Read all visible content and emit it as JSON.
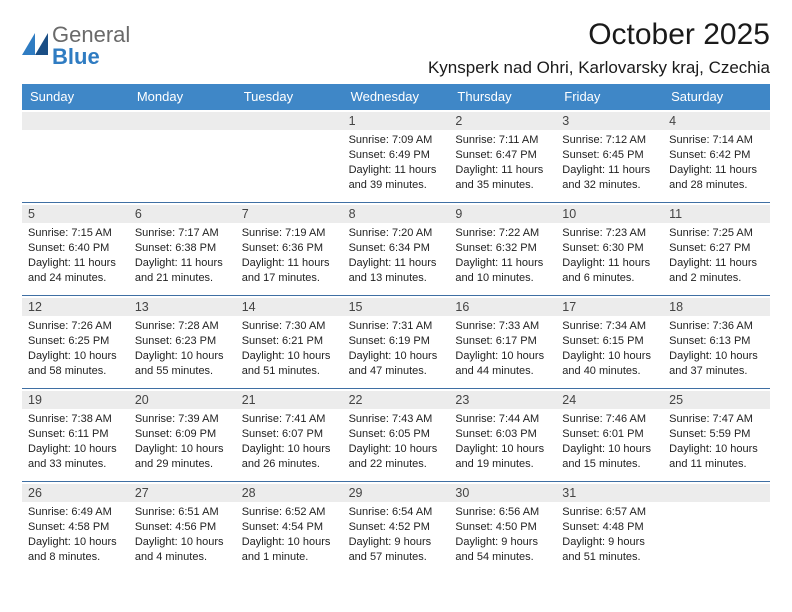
{
  "logo": {
    "text1": "General",
    "text2": "Blue"
  },
  "title": "October 2025",
  "subtitle": "Kynsperk nad Ohri, Karlovarsky kraj, Czechia",
  "colors": {
    "header_bg": "#3f87c7",
    "header_text": "#ffffff",
    "row_divider": "#3f6fa3",
    "daynum_bg": "#ececec",
    "logo_blue": "#2f7cc2"
  },
  "day_headers": [
    "Sunday",
    "Monday",
    "Tuesday",
    "Wednesday",
    "Thursday",
    "Friday",
    "Saturday"
  ],
  "leading_blanks": 3,
  "days": [
    {
      "n": "1",
      "sunrise": "7:09 AM",
      "sunset": "6:49 PM",
      "day_h": "11",
      "day_m": "39"
    },
    {
      "n": "2",
      "sunrise": "7:11 AM",
      "sunset": "6:47 PM",
      "day_h": "11",
      "day_m": "35"
    },
    {
      "n": "3",
      "sunrise": "7:12 AM",
      "sunset": "6:45 PM",
      "day_h": "11",
      "day_m": "32"
    },
    {
      "n": "4",
      "sunrise": "7:14 AM",
      "sunset": "6:42 PM",
      "day_h": "11",
      "day_m": "28"
    },
    {
      "n": "5",
      "sunrise": "7:15 AM",
      "sunset": "6:40 PM",
      "day_h": "11",
      "day_m": "24"
    },
    {
      "n": "6",
      "sunrise": "7:17 AM",
      "sunset": "6:38 PM",
      "day_h": "11",
      "day_m": "21"
    },
    {
      "n": "7",
      "sunrise": "7:19 AM",
      "sunset": "6:36 PM",
      "day_h": "11",
      "day_m": "17"
    },
    {
      "n": "8",
      "sunrise": "7:20 AM",
      "sunset": "6:34 PM",
      "day_h": "11",
      "day_m": "13"
    },
    {
      "n": "9",
      "sunrise": "7:22 AM",
      "sunset": "6:32 PM",
      "day_h": "11",
      "day_m": "10"
    },
    {
      "n": "10",
      "sunrise": "7:23 AM",
      "sunset": "6:30 PM",
      "day_h": "11",
      "day_m": "6"
    },
    {
      "n": "11",
      "sunrise": "7:25 AM",
      "sunset": "6:27 PM",
      "day_h": "11",
      "day_m": "2"
    },
    {
      "n": "12",
      "sunrise": "7:26 AM",
      "sunset": "6:25 PM",
      "day_h": "10",
      "day_m": "58"
    },
    {
      "n": "13",
      "sunrise": "7:28 AM",
      "sunset": "6:23 PM",
      "day_h": "10",
      "day_m": "55"
    },
    {
      "n": "14",
      "sunrise": "7:30 AM",
      "sunset": "6:21 PM",
      "day_h": "10",
      "day_m": "51"
    },
    {
      "n": "15",
      "sunrise": "7:31 AM",
      "sunset": "6:19 PM",
      "day_h": "10",
      "day_m": "47"
    },
    {
      "n": "16",
      "sunrise": "7:33 AM",
      "sunset": "6:17 PM",
      "day_h": "10",
      "day_m": "44"
    },
    {
      "n": "17",
      "sunrise": "7:34 AM",
      "sunset": "6:15 PM",
      "day_h": "10",
      "day_m": "40"
    },
    {
      "n": "18",
      "sunrise": "7:36 AM",
      "sunset": "6:13 PM",
      "day_h": "10",
      "day_m": "37"
    },
    {
      "n": "19",
      "sunrise": "7:38 AM",
      "sunset": "6:11 PM",
      "day_h": "10",
      "day_m": "33"
    },
    {
      "n": "20",
      "sunrise": "7:39 AM",
      "sunset": "6:09 PM",
      "day_h": "10",
      "day_m": "29"
    },
    {
      "n": "21",
      "sunrise": "7:41 AM",
      "sunset": "6:07 PM",
      "day_h": "10",
      "day_m": "26"
    },
    {
      "n": "22",
      "sunrise": "7:43 AM",
      "sunset": "6:05 PM",
      "day_h": "10",
      "day_m": "22"
    },
    {
      "n": "23",
      "sunrise": "7:44 AM",
      "sunset": "6:03 PM",
      "day_h": "10",
      "day_m": "19"
    },
    {
      "n": "24",
      "sunrise": "7:46 AM",
      "sunset": "6:01 PM",
      "day_h": "10",
      "day_m": "15"
    },
    {
      "n": "25",
      "sunrise": "7:47 AM",
      "sunset": "5:59 PM",
      "day_h": "10",
      "day_m": "11"
    },
    {
      "n": "26",
      "sunrise": "6:49 AM",
      "sunset": "4:58 PM",
      "day_h": "10",
      "day_m": "8"
    },
    {
      "n": "27",
      "sunrise": "6:51 AM",
      "sunset": "4:56 PM",
      "day_h": "10",
      "day_m": "4"
    },
    {
      "n": "28",
      "sunrise": "6:52 AM",
      "sunset": "4:54 PM",
      "day_h": "10",
      "day_m": "1",
      "unit": "minute"
    },
    {
      "n": "29",
      "sunrise": "6:54 AM",
      "sunset": "4:52 PM",
      "day_h": "9",
      "day_m": "57"
    },
    {
      "n": "30",
      "sunrise": "6:56 AM",
      "sunset": "4:50 PM",
      "day_h": "9",
      "day_m": "54"
    },
    {
      "n": "31",
      "sunrise": "6:57 AM",
      "sunset": "4:48 PM",
      "day_h": "9",
      "day_m": "51"
    }
  ],
  "labels": {
    "sunrise": "Sunrise:",
    "sunset": "Sunset:",
    "daylight": "Daylight:",
    "hours": "hours",
    "and": "and",
    "minutes": "minutes."
  }
}
